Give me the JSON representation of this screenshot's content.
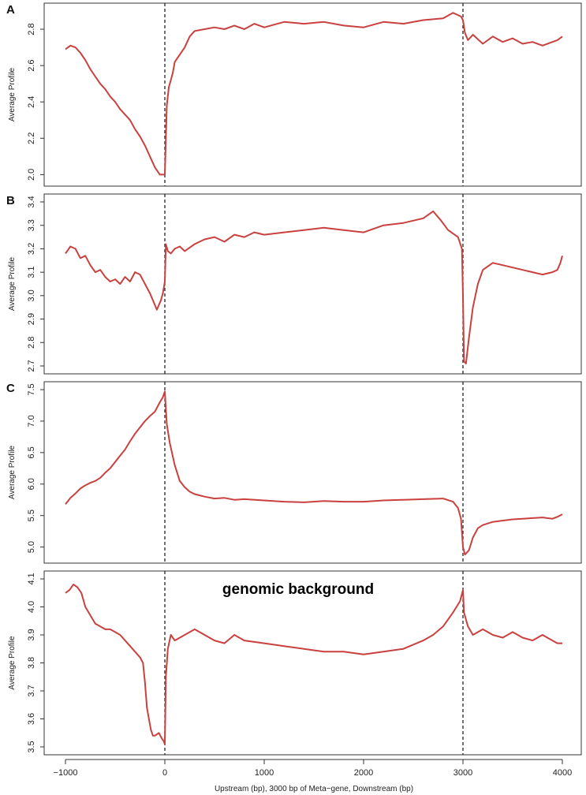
{
  "chart_data": [
    {
      "type": "line",
      "panel_label": "A",
      "annotation": "",
      "ylabel": "Average Profile",
      "xlim": [
        -1000,
        4000
      ],
      "ylim": [
        1.98,
        2.9
      ],
      "yticks": [
        "2.0",
        "2.2",
        "2.4",
        "2.6",
        "2.8"
      ],
      "ytick_values": [
        2.0,
        2.2,
        2.4,
        2.6,
        2.8
      ],
      "vlines": [
        0,
        3000
      ],
      "series": [
        {
          "color": "#c9413e",
          "x": [
            -1000,
            -950,
            -900,
            -850,
            -800,
            -750,
            -700,
            -650,
            -600,
            -550,
            -500,
            -450,
            -400,
            -350,
            -300,
            -250,
            -200,
            -150,
            -100,
            -50,
            0,
            10,
            20,
            40,
            60,
            80,
            100,
            150,
            200,
            250,
            300,
            400,
            500,
            600,
            700,
            800,
            900,
            1000,
            1200,
            1400,
            1600,
            1800,
            2000,
            2200,
            2400,
            2600,
            2800,
            2900,
            2980,
            3000,
            3020,
            3050,
            3100,
            3200,
            3300,
            3400,
            3500,
            3600,
            3700,
            3800,
            3900,
            3950,
            4000
          ],
          "y": [
            2.69,
            2.71,
            2.7,
            2.67,
            2.63,
            2.58,
            2.54,
            2.5,
            2.47,
            2.43,
            2.4,
            2.36,
            2.33,
            2.3,
            2.25,
            2.21,
            2.16,
            2.1,
            2.04,
            2.0,
            2.0,
            2.2,
            2.38,
            2.48,
            2.52,
            2.56,
            2.62,
            2.66,
            2.7,
            2.76,
            2.79,
            2.8,
            2.81,
            2.8,
            2.82,
            2.8,
            2.83,
            2.81,
            2.84,
            2.83,
            2.84,
            2.82,
            2.81,
            2.84,
            2.83,
            2.85,
            2.86,
            2.89,
            2.87,
            2.85,
            2.78,
            2.74,
            2.77,
            2.72,
            2.76,
            2.73,
            2.75,
            2.72,
            2.73,
            2.71,
            2.73,
            2.74,
            2.76
          ]
        }
      ]
    },
    {
      "type": "line",
      "panel_label": "B",
      "annotation": "",
      "ylabel": "Average Profile",
      "xlim": [
        -1000,
        4000
      ],
      "ylim": [
        2.7,
        3.4
      ],
      "yticks": [
        "2.7",
        "2.8",
        "2.9",
        "3.0",
        "3.1",
        "3.2",
        "3.3",
        "3.4"
      ],
      "ytick_values": [
        2.7,
        2.8,
        2.9,
        3.0,
        3.1,
        3.2,
        3.3,
        3.4
      ],
      "vlines": [
        0,
        3000
      ],
      "series": [
        {
          "color": "#c9413e",
          "x": [
            -1000,
            -950,
            -900,
            -850,
            -800,
            -750,
            -700,
            -650,
            -600,
            -550,
            -500,
            -450,
            -400,
            -350,
            -300,
            -250,
            -200,
            -150,
            -100,
            -80,
            -60,
            -40,
            -20,
            0,
            10,
            30,
            60,
            100,
            150,
            200,
            300,
            400,
            500,
            600,
            700,
            800,
            900,
            1000,
            1200,
            1400,
            1600,
            1800,
            2000,
            2200,
            2400,
            2600,
            2700,
            2780,
            2850,
            2950,
            2990,
            3000,
            3010,
            3030,
            3060,
            3100,
            3150,
            3200,
            3300,
            3400,
            3500,
            3600,
            3700,
            3800,
            3900,
            3950,
            3980,
            4000
          ],
          "y": [
            3.18,
            3.21,
            3.2,
            3.16,
            3.17,
            3.13,
            3.1,
            3.11,
            3.08,
            3.06,
            3.07,
            3.05,
            3.08,
            3.06,
            3.1,
            3.09,
            3.05,
            3.01,
            2.96,
            2.94,
            2.96,
            2.98,
            3.01,
            3.06,
            3.22,
            3.19,
            3.18,
            3.2,
            3.21,
            3.19,
            3.22,
            3.24,
            3.25,
            3.23,
            3.26,
            3.25,
            3.27,
            3.26,
            3.27,
            3.28,
            3.29,
            3.28,
            3.27,
            3.3,
            3.31,
            3.33,
            3.36,
            3.32,
            3.28,
            3.25,
            3.2,
            3.0,
            2.72,
            2.71,
            2.82,
            2.95,
            3.05,
            3.11,
            3.14,
            3.13,
            3.12,
            3.11,
            3.1,
            3.09,
            3.1,
            3.11,
            3.14,
            3.17
          ]
        }
      ]
    },
    {
      "type": "line",
      "panel_label": "C",
      "annotation": "",
      "ylabel": "Average Profile",
      "xlim": [
        -1000,
        4000
      ],
      "ylim": [
        4.87,
        7.5
      ],
      "yticks": [
        "5.0",
        "5.5",
        "6.0",
        "6.5",
        "7.0",
        "7.5"
      ],
      "ytick_values": [
        5.0,
        5.5,
        6.0,
        6.5,
        7.0,
        7.5
      ],
      "vlines": [
        0,
        3000
      ],
      "series": [
        {
          "color": "#c9413e",
          "x": [
            -1000,
            -950,
            -900,
            -850,
            -800,
            -750,
            -700,
            -650,
            -600,
            -550,
            -500,
            -450,
            -400,
            -350,
            -300,
            -250,
            -200,
            -150,
            -100,
            -50,
            -20,
            0,
            20,
            50,
            100,
            150,
            200,
            250,
            300,
            400,
            500,
            600,
            700,
            800,
            1000,
            1200,
            1400,
            1600,
            1800,
            2000,
            2200,
            2400,
            2600,
            2800,
            2900,
            2950,
            2980,
            3000,
            3020,
            3060,
            3100,
            3150,
            3200,
            3300,
            3400,
            3500,
            3600,
            3700,
            3800,
            3900,
            3950,
            4000
          ],
          "y": [
            5.68,
            5.78,
            5.85,
            5.93,
            5.98,
            6.02,
            6.05,
            6.1,
            6.18,
            6.25,
            6.35,
            6.45,
            6.55,
            6.68,
            6.8,
            6.9,
            7.0,
            7.08,
            7.15,
            7.3,
            7.38,
            7.47,
            6.95,
            6.65,
            6.3,
            6.05,
            5.95,
            5.88,
            5.84,
            5.8,
            5.77,
            5.78,
            5.75,
            5.76,
            5.74,
            5.72,
            5.71,
            5.73,
            5.72,
            5.72,
            5.74,
            5.75,
            5.76,
            5.77,
            5.72,
            5.62,
            5.45,
            5.0,
            4.88,
            4.95,
            5.15,
            5.3,
            5.35,
            5.4,
            5.42,
            5.44,
            5.45,
            5.46,
            5.47,
            5.45,
            5.48,
            5.52
          ]
        }
      ]
    },
    {
      "type": "line",
      "panel_label": "",
      "annotation": "genomic background",
      "ylabel": "Average Profile",
      "xlabel": "Upstream (bp), 3000 bp of Meta−gene, Downstream (bp)",
      "xlim": [
        -1000,
        4000
      ],
      "ylim": [
        3.5,
        4.1
      ],
      "yticks": [
        "3.5",
        "3.6",
        "3.7",
        "3.8",
        "3.9",
        "4.0",
        "4.1"
      ],
      "ytick_values": [
        3.5,
        3.6,
        3.7,
        3.8,
        3.9,
        4.0,
        4.1
      ],
      "xticks": [
        "−1000",
        "0",
        "1000",
        "2000",
        "3000",
        "4000"
      ],
      "xtick_values": [
        -1000,
        0,
        1000,
        2000,
        3000,
        4000
      ],
      "vlines": [
        0,
        3000
      ],
      "series": [
        {
          "color": "#c9413e",
          "x": [
            -1000,
            -960,
            -920,
            -880,
            -840,
            -800,
            -750,
            -700,
            -650,
            -600,
            -550,
            -500,
            -450,
            -400,
            -350,
            -300,
            -250,
            -220,
            -200,
            -180,
            -160,
            -140,
            -120,
            -100,
            -60,
            -30,
            -10,
            0,
            10,
            30,
            60,
            100,
            200,
            300,
            400,
            500,
            600,
            700,
            800,
            1000,
            1200,
            1400,
            1600,
            1800,
            2000,
            2200,
            2400,
            2600,
            2700,
            2800,
            2900,
            2970,
            3000,
            3010,
            3050,
            3100,
            3200,
            3300,
            3400,
            3500,
            3600,
            3700,
            3800,
            3900,
            3950,
            4000
          ],
          "y": [
            4.05,
            4.06,
            4.08,
            4.07,
            4.05,
            4.0,
            3.97,
            3.94,
            3.93,
            3.92,
            3.92,
            3.91,
            3.9,
            3.88,
            3.86,
            3.84,
            3.82,
            3.8,
            3.73,
            3.64,
            3.6,
            3.56,
            3.54,
            3.54,
            3.55,
            3.53,
            3.52,
            3.51,
            3.75,
            3.85,
            3.9,
            3.88,
            3.9,
            3.92,
            3.9,
            3.88,
            3.87,
            3.9,
            3.88,
            3.87,
            3.86,
            3.85,
            3.84,
            3.84,
            3.83,
            3.84,
            3.85,
            3.88,
            3.9,
            3.93,
            3.98,
            4.02,
            4.06,
            3.98,
            3.93,
            3.9,
            3.92,
            3.9,
            3.89,
            3.91,
            3.89,
            3.88,
            3.9,
            3.88,
            3.87,
            3.87
          ]
        }
      ]
    }
  ]
}
